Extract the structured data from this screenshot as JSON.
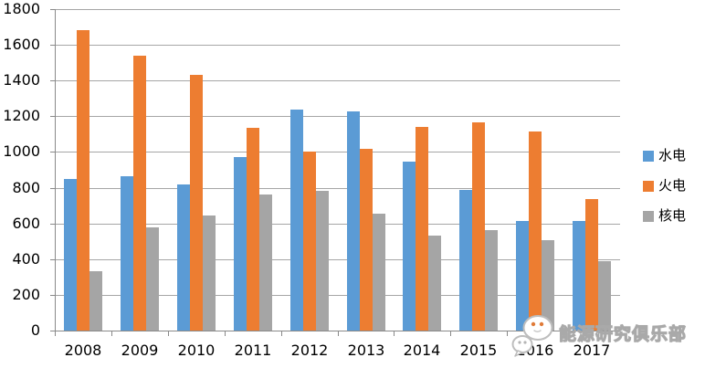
{
  "chart_data": {
    "type": "bar",
    "title": "",
    "categories": [
      "2008",
      "2009",
      "2010",
      "2011",
      "2012",
      "2013",
      "2014",
      "2015",
      "2016",
      "2017"
    ],
    "series": [
      {
        "name": "水电",
        "color": "#5B9BD5",
        "values": [
          850,
          865,
          820,
          970,
          1240,
          1225,
          945,
          790,
          615,
          615
        ]
      },
      {
        "name": "火电",
        "color": "#ED7D31",
        "values": [
          1680,
          1540,
          1430,
          1135,
          1000,
          1020,
          1140,
          1165,
          1115,
          735
        ]
      },
      {
        "name": "核电",
        "color": "#A5A5A5",
        "values": [
          330,
          580,
          645,
          760,
          780,
          655,
          530,
          560,
          505,
          390
        ]
      }
    ],
    "xlabel": "",
    "ylabel": "",
    "ylim": [
      0,
      1800
    ],
    "ytick_step": 200,
    "yticks": [
      0,
      200,
      400,
      600,
      800,
      1000,
      1200,
      1400,
      1600,
      1800
    ],
    "grid": true,
    "legend_position": "right"
  },
  "watermark": {
    "text": "能源研究俱乐部",
    "icon": "wechat-logo"
  },
  "colors": {
    "background": "#FFFFFF",
    "gridline": "#A6A6A6",
    "axis": "#898989",
    "label_text": "#000000",
    "watermark_fill": "#FFFFFF",
    "watermark_outline": "#A9A9A9",
    "watermark_eyes": "#E07B39"
  }
}
